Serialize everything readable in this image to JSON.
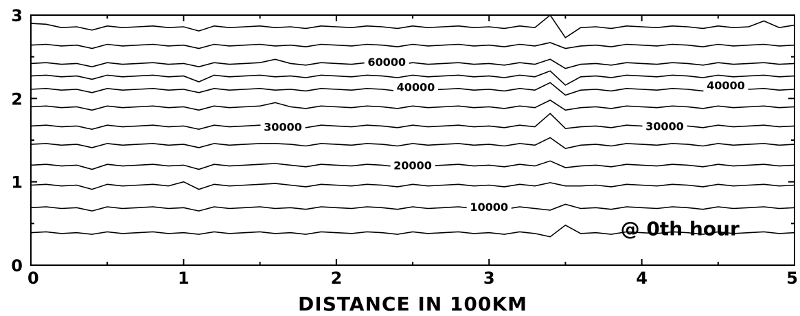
{
  "chart_data": {
    "type": "line",
    "title": "",
    "xlabel": "DISTANCE IN 100KM",
    "ylabel": "",
    "xlim": [
      0,
      5
    ],
    "ylim": [
      0,
      3
    ],
    "x_ticks": [
      "0",
      "1",
      "2",
      "3",
      "4",
      "5"
    ],
    "y_ticks": [
      "0",
      "1",
      "2",
      "3"
    ],
    "grid": false,
    "annotation": "@ 0th hour",
    "contour_labels": [
      {
        "text": "60000",
        "x": 2.33,
        "y": 2.44
      },
      {
        "text": "40000",
        "x": 2.52,
        "y": 2.14
      },
      {
        "text": "40000",
        "x": 4.55,
        "y": 2.16
      },
      {
        "text": "30000",
        "x": 1.65,
        "y": 1.66
      },
      {
        "text": "30000",
        "x": 4.15,
        "y": 1.67
      },
      {
        "text": "20000",
        "x": 2.5,
        "y": 1.2
      },
      {
        "text": "10000",
        "x": 3.0,
        "y": 0.7
      }
    ],
    "x": [
      0.0,
      0.1,
      0.2,
      0.3,
      0.4,
      0.5,
      0.6,
      0.7,
      0.8,
      0.9,
      1.0,
      1.1,
      1.2,
      1.3,
      1.4,
      1.5,
      1.6,
      1.7,
      1.8,
      1.9,
      2.0,
      2.1,
      2.2,
      2.3,
      2.4,
      2.5,
      2.6,
      2.7,
      2.8,
      2.9,
      3.0,
      3.1,
      3.2,
      3.3,
      3.4,
      3.5,
      3.6,
      3.7,
      3.8,
      3.9,
      4.0,
      4.1,
      4.2,
      4.3,
      4.4,
      4.5,
      4.6,
      4.7,
      4.8,
      4.9,
      5.0
    ],
    "base": [
      0.44,
      0.45,
      0.43,
      0.44,
      0.42,
      0.45,
      0.43,
      0.44,
      0.45,
      0.43,
      0.44,
      0.42,
      0.45,
      0.43,
      0.44,
      0.45,
      0.43,
      0.44,
      0.42,
      0.45,
      0.44,
      0.43,
      0.45,
      0.44,
      0.42,
      0.45,
      0.43,
      0.44,
      0.45,
      0.43,
      0.44,
      0.42,
      0.45,
      0.43,
      0.44,
      0.45,
      0.43,
      0.44,
      0.42,
      0.45,
      0.44,
      0.43,
      0.45,
      0.44,
      0.42,
      0.45,
      0.43,
      0.44,
      0.45,
      0.43,
      0.44
    ],
    "series": [
      {
        "offset": 0.39,
        "anomaly": [
          0.0,
          0.0,
          0.0,
          0.0,
          0.0,
          0.0,
          0.0,
          0.0,
          0.0,
          0.0,
          0.0,
          0.0,
          0.0,
          0.0,
          0.0,
          0.0,
          0.0,
          0.0,
          0.0,
          0.0,
          0.0,
          0.0,
          0.0,
          0.0,
          0.0,
          0.0,
          0.0,
          0.0,
          0.0,
          0.0,
          0.0,
          0.0,
          0.0,
          0.0,
          -0.05,
          0.08,
          0.0,
          0.0,
          0.0,
          0.0,
          0.0,
          0.0,
          0.0,
          0.0,
          0.0,
          0.0,
          0.0,
          0.0,
          0.0,
          0.0,
          0.0
        ]
      },
      {
        "offset": 0.69,
        "anomaly": [
          0.0,
          0.0,
          0.0,
          0.0,
          -0.02,
          0.0,
          0.0,
          0.0,
          0.0,
          0.0,
          0.0,
          -0.02,
          0.0,
          0.0,
          0.0,
          0.0,
          0.0,
          0.0,
          0.0,
          0.0,
          0.0,
          0.0,
          0.0,
          0.0,
          0.0,
          0.0,
          0.0,
          0.0,
          0.0,
          0.0,
          0.0,
          0.0,
          0.0,
          0.0,
          -0.03,
          0.03,
          0.0,
          0.0,
          0.0,
          0.0,
          0.0,
          0.0,
          0.0,
          0.0,
          0.0,
          0.0,
          0.0,
          0.0,
          0.0,
          0.0,
          0.0
        ]
      },
      {
        "offset": 0.96,
        "anomaly": [
          0.0,
          0.0,
          0.0,
          0.0,
          -0.03,
          0.0,
          0.0,
          0.0,
          0.0,
          0.0,
          0.04,
          -0.03,
          0.0,
          0.0,
          0.0,
          0.0,
          0.03,
          0.0,
          0.0,
          0.0,
          0.0,
          0.0,
          0.0,
          0.0,
          0.0,
          0.0,
          0.0,
          0.0,
          0.0,
          0.0,
          0.0,
          0.0,
          0.0,
          0.0,
          0.03,
          -0.02,
          0.0,
          0.0,
          0.0,
          0.0,
          0.0,
          0.0,
          0.0,
          0.0,
          0.0,
          0.0,
          0.0,
          0.0,
          0.0,
          0.0,
          0.0
        ]
      },
      {
        "offset": 1.2,
        "anomaly": [
          0.0,
          0.0,
          0.0,
          0.0,
          -0.03,
          0.0,
          0.0,
          0.0,
          0.0,
          0.0,
          0.0,
          -0.03,
          0.0,
          0.0,
          0.0,
          0.0,
          0.03,
          0.0,
          0.0,
          0.0,
          0.0,
          0.0,
          0.0,
          0.0,
          0.0,
          0.0,
          0.0,
          0.0,
          0.0,
          0.0,
          0.0,
          0.0,
          0.0,
          0.0,
          0.05,
          -0.04,
          0.0,
          0.0,
          0.0,
          0.0,
          0.0,
          0.0,
          0.0,
          0.0,
          0.0,
          0.0,
          0.0,
          0.0,
          0.0,
          0.0,
          0.0
        ]
      },
      {
        "offset": 1.45,
        "anomaly": [
          0.0,
          0.0,
          0.0,
          0.0,
          -0.02,
          0.0,
          0.0,
          0.0,
          0.0,
          0.0,
          0.0,
          -0.02,
          0.0,
          0.0,
          0.0,
          0.0,
          0.02,
          0.0,
          0.0,
          0.0,
          0.0,
          0.0,
          0.0,
          0.0,
          0.0,
          0.0,
          0.0,
          0.0,
          0.0,
          0.0,
          0.0,
          0.0,
          0.0,
          0.0,
          0.08,
          -0.06,
          0.0,
          0.0,
          0.0,
          0.0,
          0.0,
          0.0,
          0.0,
          0.0,
          0.0,
          0.0,
          0.0,
          0.0,
          0.0,
          0.0,
          0.0
        ]
      },
      {
        "offset": 1.67,
        "anomaly": [
          0.0,
          0.0,
          0.0,
          0.0,
          -0.02,
          0.0,
          0.0,
          0.0,
          0.0,
          0.0,
          0.0,
          -0.02,
          0.0,
          0.0,
          0.0,
          0.0,
          0.02,
          0.0,
          0.0,
          0.0,
          0.0,
          0.0,
          0.0,
          0.0,
          0.0,
          0.0,
          0.0,
          0.0,
          0.0,
          0.0,
          0.0,
          0.0,
          0.0,
          0.0,
          0.15,
          -0.04,
          0.0,
          0.0,
          0.0,
          0.0,
          0.0,
          0.0,
          0.0,
          0.0,
          0.0,
          0.0,
          0.0,
          0.0,
          0.0,
          0.0,
          0.0
        ]
      },
      {
        "offset": 1.9,
        "anomaly": [
          0.0,
          0.0,
          0.0,
          0.0,
          -0.02,
          0.0,
          0.0,
          0.0,
          0.0,
          0.0,
          0.0,
          -0.02,
          0.0,
          0.0,
          0.0,
          0.0,
          0.06,
          0.0,
          0.0,
          0.0,
          0.0,
          0.0,
          0.0,
          0.0,
          0.0,
          0.0,
          0.0,
          0.0,
          0.0,
          0.0,
          0.0,
          0.0,
          0.0,
          0.0,
          0.08,
          -0.05,
          0.0,
          0.0,
          0.0,
          0.0,
          0.0,
          0.0,
          0.0,
          0.0,
          0.0,
          0.0,
          0.0,
          0.0,
          0.0,
          0.0,
          0.0
        ]
      },
      {
        "offset": 2.11,
        "anomaly": [
          0.0,
          0.0,
          0.0,
          0.0,
          -0.02,
          0.0,
          0.0,
          0.0,
          0.0,
          0.0,
          0.0,
          -0.02,
          0.0,
          0.0,
          0.0,
          0.0,
          0.0,
          0.0,
          0.0,
          0.0,
          0.0,
          0.0,
          0.0,
          0.0,
          0.0,
          0.0,
          0.0,
          0.0,
          0.0,
          0.0,
          0.0,
          0.0,
          0.0,
          0.0,
          0.08,
          -0.08,
          0.0,
          0.0,
          0.0,
          0.0,
          0.0,
          0.0,
          0.0,
          0.0,
          0.0,
          0.0,
          0.0,
          0.0,
          0.0,
          0.0,
          0.0
        ]
      },
      {
        "offset": 2.27,
        "anomaly": [
          0.0,
          0.0,
          0.0,
          0.0,
          -0.02,
          0.0,
          0.0,
          0.0,
          0.0,
          0.0,
          0.0,
          -0.05,
          0.0,
          0.0,
          0.0,
          0.0,
          0.0,
          0.0,
          0.0,
          0.0,
          0.0,
          0.0,
          0.0,
          0.0,
          0.0,
          0.0,
          0.0,
          0.0,
          0.0,
          0.0,
          0.0,
          0.0,
          0.0,
          0.0,
          0.06,
          -0.12,
          0.0,
          0.0,
          0.0,
          0.0,
          0.0,
          0.0,
          0.0,
          0.0,
          0.0,
          0.0,
          0.0,
          0.0,
          0.0,
          0.0,
          0.0
        ]
      },
      {
        "offset": 2.42,
        "anomaly": [
          0.0,
          0.0,
          0.0,
          0.0,
          -0.02,
          0.0,
          0.0,
          0.0,
          0.0,
          0.0,
          0.0,
          -0.02,
          0.0,
          0.0,
          0.0,
          0.0,
          0.06,
          0.0,
          0.0,
          0.0,
          0.0,
          0.0,
          0.0,
          0.0,
          0.0,
          0.0,
          0.0,
          0.0,
          0.0,
          0.0,
          0.0,
          0.0,
          0.0,
          0.0,
          0.05,
          -0.07,
          0.0,
          0.0,
          0.0,
          0.0,
          0.0,
          0.0,
          0.0,
          0.0,
          0.0,
          0.0,
          0.0,
          0.0,
          0.0,
          0.0,
          0.0
        ]
      },
      {
        "offset": 2.64,
        "anomaly": [
          0.0,
          0.0,
          0.0,
          0.0,
          -0.02,
          0.0,
          0.0,
          0.0,
          0.0,
          0.0,
          0.0,
          -0.02,
          0.0,
          0.0,
          0.0,
          0.0,
          0.0,
          0.0,
          0.0,
          0.0,
          0.0,
          0.0,
          0.0,
          0.0,
          0.0,
          0.0,
          0.0,
          0.0,
          0.0,
          0.0,
          0.0,
          0.0,
          0.0,
          0.0,
          0.03,
          -0.05,
          0.0,
          0.0,
          0.0,
          0.0,
          0.0,
          0.0,
          0.0,
          0.0,
          0.0,
          0.0,
          0.0,
          0.0,
          0.0,
          0.0,
          0.0
        ]
      },
      {
        "offset": 2.86,
        "anomaly": [
          0.04,
          0.02,
          0.0,
          0.0,
          -0.02,
          0.0,
          0.0,
          0.0,
          0.0,
          0.0,
          0.0,
          -0.03,
          0.0,
          0.0,
          0.0,
          0.0,
          0.0,
          0.0,
          0.0,
          0.0,
          0.0,
          0.0,
          0.0,
          0.0,
          0.0,
          0.0,
          0.0,
          0.0,
          0.0,
          0.0,
          0.0,
          0.0,
          0.0,
          0.0,
          0.14,
          -0.14,
          0.0,
          0.0,
          0.0,
          0.0,
          0.0,
          0.0,
          0.0,
          0.0,
          0.0,
          0.0,
          0.0,
          0.0,
          0.06,
          0.0,
          0.02
        ]
      }
    ]
  }
}
